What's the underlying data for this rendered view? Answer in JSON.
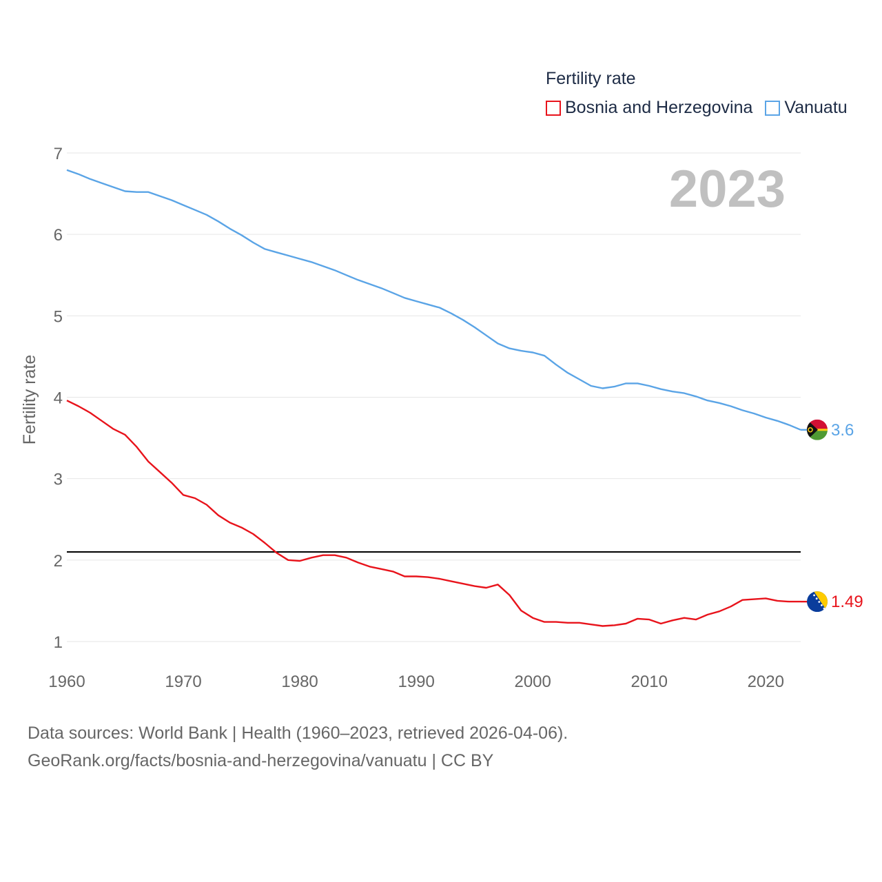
{
  "legend": {
    "title": "Fertility rate",
    "items": [
      {
        "label": "Bosnia and Herzegovina",
        "color": "#e8131b"
      },
      {
        "label": "Vanuatu",
        "color": "#5aa4e6"
      }
    ]
  },
  "source": {
    "line1": "Data sources: World Bank | Health (1960–2023, retrieved 2026-04-06).",
    "line2": "GeoRank.org/facts/bosnia-and-herzegovina/vanuatu | CC BY"
  },
  "chart_data": {
    "type": "line",
    "title": "Fertility rate",
    "current_year": "2023",
    "xlabel": "",
    "ylabel": "Fertility rate",
    "xlim": [
      1960,
      2023
    ],
    "ylim": [
      0.7,
      7.1
    ],
    "x_ticks": [
      "1960",
      "1970",
      "1980",
      "1990",
      "2000",
      "2010",
      "2020"
    ],
    "y_ticks": [
      "1",
      "2",
      "3",
      "4",
      "5",
      "6",
      "7"
    ],
    "reference_line": {
      "y": 2.1,
      "color": "#000000"
    },
    "x": [
      1960,
      1961,
      1962,
      1963,
      1964,
      1965,
      1966,
      1967,
      1968,
      1969,
      1970,
      1971,
      1972,
      1973,
      1974,
      1975,
      1976,
      1977,
      1978,
      1979,
      1980,
      1981,
      1982,
      1983,
      1984,
      1985,
      1986,
      1987,
      1988,
      1989,
      1990,
      1991,
      1992,
      1993,
      1994,
      1995,
      1996,
      1997,
      1998,
      1999,
      2000,
      2001,
      2002,
      2003,
      2004,
      2005,
      2006,
      2007,
      2008,
      2009,
      2010,
      2011,
      2012,
      2013,
      2014,
      2015,
      2016,
      2017,
      2018,
      2019,
      2020,
      2021,
      2022,
      2023
    ],
    "series": [
      {
        "name": "Bosnia and Herzegovina",
        "color": "#e8131b",
        "end_label": "1.49",
        "values": [
          3.96,
          3.89,
          3.81,
          3.71,
          3.61,
          3.54,
          3.39,
          3.21,
          3.08,
          2.95,
          2.8,
          2.76,
          2.68,
          2.55,
          2.46,
          2.4,
          2.32,
          2.21,
          2.09,
          2.0,
          1.99,
          2.03,
          2.06,
          2.06,
          2.03,
          1.97,
          1.92,
          1.89,
          1.86,
          1.8,
          1.8,
          1.79,
          1.77,
          1.74,
          1.71,
          1.68,
          1.66,
          1.7,
          1.57,
          1.38,
          1.29,
          1.24,
          1.24,
          1.23,
          1.23,
          1.21,
          1.19,
          1.2,
          1.22,
          1.28,
          1.27,
          1.22,
          1.26,
          1.29,
          1.27,
          1.33,
          1.37,
          1.43,
          1.51,
          1.52,
          1.53,
          1.5,
          1.49,
          1.49
        ]
      },
      {
        "name": "Vanuatu",
        "color": "#5aa4e6",
        "end_label": "3.6",
        "values": [
          6.79,
          6.74,
          6.68,
          6.63,
          6.58,
          6.53,
          6.52,
          6.52,
          6.47,
          6.42,
          6.36,
          6.3,
          6.24,
          6.16,
          6.07,
          5.99,
          5.9,
          5.82,
          5.78,
          5.74,
          5.7,
          5.66,
          5.61,
          5.56,
          5.5,
          5.44,
          5.39,
          5.34,
          5.28,
          5.22,
          5.18,
          5.14,
          5.1,
          5.03,
          4.95,
          4.86,
          4.76,
          4.66,
          4.6,
          4.57,
          4.55,
          4.51,
          4.4,
          4.3,
          4.22,
          4.14,
          4.11,
          4.13,
          4.17,
          4.17,
          4.14,
          4.1,
          4.07,
          4.05,
          4.01,
          3.96,
          3.93,
          3.89,
          3.84,
          3.8,
          3.75,
          3.71,
          3.66,
          3.6
        ]
      }
    ]
  }
}
